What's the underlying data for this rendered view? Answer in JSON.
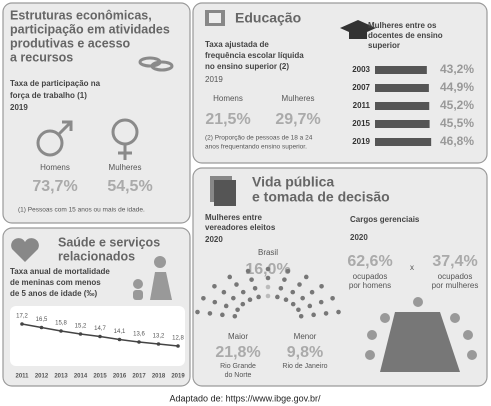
{
  "economic": {
    "title": [
      "Estruturas econômicas,",
      "participação em atividades",
      "produtivas e acesso",
      "a recursos"
    ],
    "subtitle": [
      "Taxa de participação na",
      "força de trabalho (1)"
    ],
    "year": "2019",
    "men_label": "Homens",
    "men_value": "73,7%",
    "women_label": "Mulheres",
    "women_value": "54,5%",
    "note": "(1) Pessoas com 15 anos ou mais de idade."
  },
  "education": {
    "title": "Educação",
    "subtitle": [
      "Taxa ajustada de",
      "frequência escolar líquida",
      "no ensino superior (2)"
    ],
    "year": "2019",
    "men_label": "Homens",
    "men_value": "21,5%",
    "women_label": "Mulheres",
    "women_value": "29,7%",
    "note": [
      "(2) Proporção de pessoas de 18 a 24",
      "anos frequentando ensino superior."
    ],
    "teachers": {
      "type": "bar",
      "title": [
        "Mulheres entre os",
        "docentes de ensino",
        "superior"
      ],
      "categories": [
        "2003",
        "2007",
        "2011",
        "2015",
        "2019"
      ],
      "values": [
        43.2,
        44.9,
        45.2,
        45.5,
        46.8
      ],
      "value_labels": [
        "43,2%",
        "44,9%",
        "45,2%",
        "45,5%",
        "46,8%"
      ],
      "color": "#555555",
      "xlim": [
        0,
        50
      ]
    }
  },
  "health": {
    "title": [
      "Saúde e serviços",
      "relacionados"
    ],
    "mortality": {
      "type": "line",
      "title": [
        "Taxa anual de mortalidade",
        "de meninas com menos",
        "de 5 anos de idade (‰)"
      ],
      "x": [
        "2011",
        "2012",
        "2013",
        "2014",
        "2015",
        "2016",
        "2017",
        "2018",
        "2019"
      ],
      "values": [
        17.2,
        16.5,
        15.8,
        15.2,
        14.7,
        14.1,
        13.6,
        13.2,
        12.8
      ],
      "value_labels": [
        "17,2",
        "16,5",
        "15,8",
        "15,2",
        "14,7",
        "14,1",
        "13,6",
        "13,2",
        "12,8"
      ],
      "color": "#444444",
      "ylim": [
        10,
        20
      ]
    }
  },
  "public_life": {
    "title": [
      "Vida pública",
      "e tomada de decisão"
    ],
    "councilors": {
      "title": [
        "Mulheres entre",
        "vereadores eleitos"
      ],
      "year": "2020",
      "brazil_label": "Brasil",
      "brazil_value": "16,0%",
      "max_label": "Maior",
      "max_value": "21,8%",
      "max_place": [
        "Rio Grande",
        "do Norte"
      ],
      "min_label": "Menor",
      "min_value": "9,8%",
      "min_place": "Rio de Janeiro"
    },
    "managers": {
      "title": "Cargos gerenciais",
      "year": "2020",
      "men_value": "62,6%",
      "men_label": [
        "ocupados",
        "por homens"
      ],
      "times": "x",
      "women_value": "37,4%",
      "women_label": [
        "ocupados",
        "por mulheres"
      ]
    }
  },
  "footer": "Adaptado de: https://www.ibge.gov.br/"
}
